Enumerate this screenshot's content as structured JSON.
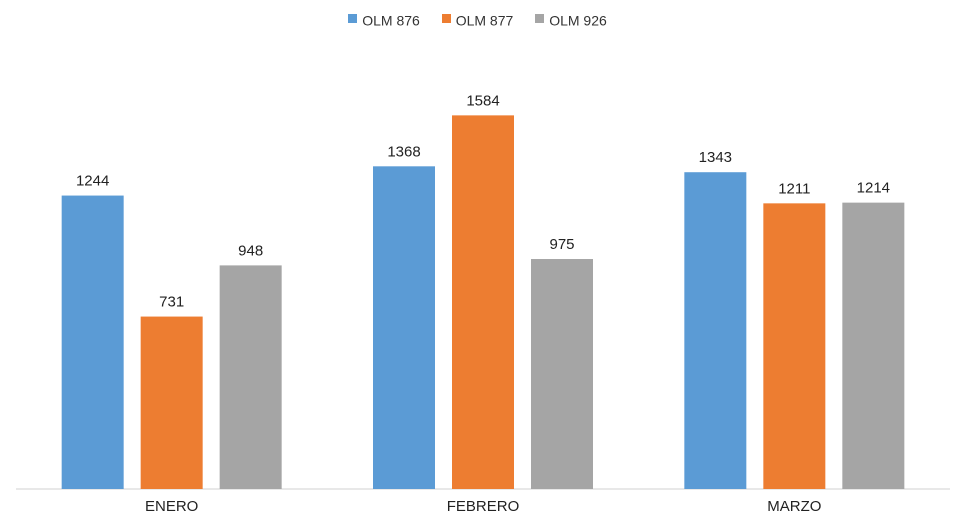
{
  "chart_data": {
    "type": "bar",
    "title": "",
    "xlabel": "",
    "ylabel": "",
    "categories": [
      "ENERO",
      "FEBRERO",
      "MARZO"
    ],
    "series": [
      {
        "name": "OLM 876",
        "color": "#5b9bd5",
        "values": [
          1244,
          1368,
          1343
        ]
      },
      {
        "name": "OLM 877",
        "color": "#ed7d31",
        "values": [
          731,
          1584,
          1211
        ]
      },
      {
        "name": "OLM 926",
        "color": "#a5a5a5",
        "values": [
          948,
          975,
          1214
        ]
      }
    ],
    "ylim": [
      0,
      1700
    ],
    "grid": false,
    "legend_position": "top",
    "data_labels": true
  }
}
